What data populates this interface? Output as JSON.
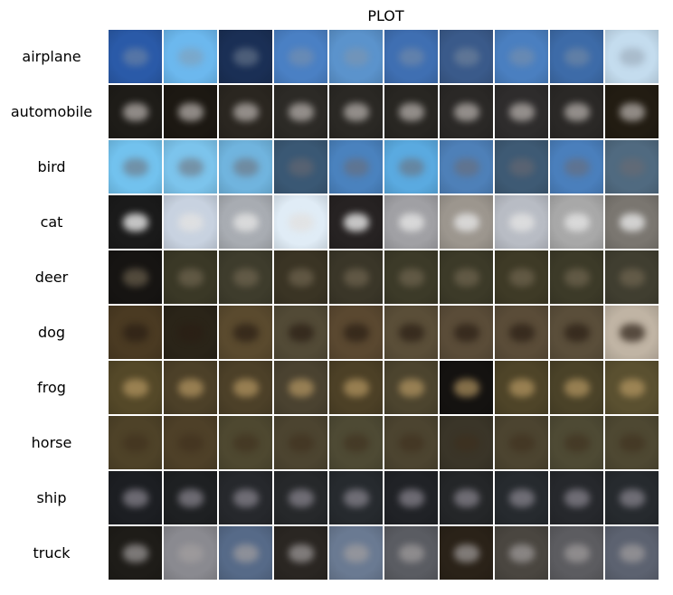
{
  "chart_data": {
    "type": "heatmap",
    "title": "PLOT",
    "rows": [
      {
        "label": "airplane",
        "bg": [
          "#2a5aa8",
          "#6cb8ee",
          "#1a2f55",
          "#4a80c4",
          "#5b93cc",
          "#3f6fb2",
          "#3a5a8a",
          "#4a7fc0",
          "#3d6ba8",
          "#c4dcee"
        ],
        "obj": "#8a96a4",
        "obj_opacity": 0.45
      },
      {
        "label": "automobile",
        "bg": [
          "#1e1c18",
          "#1c1812",
          "#2a2620",
          "#2c2a26",
          "#2a2824",
          "#282622",
          "#2a2826",
          "#2e2c2c",
          "#2a2826",
          "#221c12"
        ],
        "obj": "#b6b0ac",
        "obj_opacity": 0.75
      },
      {
        "label": "bird",
        "bg": [
          "#72c2ee",
          "#7cc4ec",
          "#70b4de",
          "#3a5874",
          "#4a82be",
          "#5aaae0",
          "#4e80b8",
          "#3e5a74",
          "#4a7fbc",
          "#506a80"
        ],
        "obj": "#6e6a70",
        "obj_opacity": 0.55
      },
      {
        "label": "cat",
        "bg": [
          "#1a1a1a",
          "#c8d2e0",
          "#a8acb2",
          "#e0ecf6",
          "#262222",
          "#a0a0a4",
          "#9c968e",
          "#b8bcc4",
          "#a8a8a8",
          "#7a7670"
        ],
        "obj": "#e2e2e2",
        "obj_opacity": 0.85
      },
      {
        "label": "deer",
        "bg": [
          "#161412",
          "#3a3826",
          "#3e3c2c",
          "#3a3424",
          "#3a3628",
          "#3c3a28",
          "#3c3a28",
          "#3e3a26",
          "#3c3a28",
          "#403e30"
        ],
        "obj": "#7a6e58",
        "obj_opacity": 0.6
      },
      {
        "label": "dog",
        "bg": [
          "#4a3a22",
          "#2a2418",
          "#5a4a2e",
          "#524a36",
          "#5a4830",
          "#5a4e38",
          "#5a4c38",
          "#5a4c38",
          "#5a4e3a",
          "#c0b4a4"
        ],
        "obj": "#2a1e14",
        "obj_opacity": 0.7
      },
      {
        "label": "frog",
        "bg": [
          "#544828",
          "#4c4028",
          "#4c4028",
          "#4a4230",
          "#4c4026",
          "#4c442e",
          "#141210",
          "#4e4428",
          "#4a4228",
          "#5a5030"
        ],
        "obj": "#c0a068",
        "obj_opacity": 0.65
      },
      {
        "label": "horse",
        "bg": [
          "#4e4228",
          "#4e4028",
          "#4e4830",
          "#4c4430",
          "#4e4a34",
          "#4c4430",
          "#3a3528",
          "#4c4430",
          "#4e4a34",
          "#4e4832"
        ],
        "obj": "#3e2e1c",
        "obj_opacity": 0.55
      },
      {
        "label": "ship",
        "bg": [
          "#1c1e22",
          "#1e2022",
          "#26282c",
          "#26282a",
          "#262a2e",
          "#202226",
          "#242628",
          "#262a2e",
          "#26282c",
          "#262a2e"
        ],
        "obj": "#8e8a94",
        "obj_opacity": 0.7
      },
      {
        "label": "truck",
        "bg": [
          "#1e1c18",
          "#8a8a90",
          "#566a88",
          "#2a2622",
          "#6a7a92",
          "#5a5c62",
          "#2a2218",
          "#4a4640",
          "#5c5c60",
          "#5c6270"
        ],
        "obj": "#a4a0a0",
        "obj_opacity": 0.7
      }
    ],
    "columns": 10,
    "legend": "none",
    "grid": true
  }
}
